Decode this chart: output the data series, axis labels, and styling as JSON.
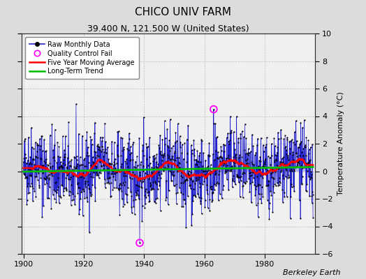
{
  "title": "CHICO UNIV FARM",
  "subtitle": "39.400 N, 121.500 W (United States)",
  "ylabel": "Temperature Anomaly (°C)",
  "credit": "Berkeley Earth",
  "year_start": 1900,
  "year_end": 1995,
  "ylim": [
    -6,
    10
  ],
  "yticks": [
    -6,
    -4,
    -2,
    0,
    2,
    4,
    6,
    8,
    10
  ],
  "xticks": [
    1900,
    1920,
    1940,
    1960,
    1980
  ],
  "bg_color": "#dcdcdc",
  "plot_bg_color": "#f0f0f0",
  "raw_line_color": "#2222cc",
  "raw_dot_color": "#000000",
  "raw_fill_color": "#8888ee",
  "qc_fail_color": "#ff00ff",
  "moving_avg_color": "#ff0000",
  "trend_color": "#00bb00",
  "qc_fail_points": [
    {
      "year": 1938.5,
      "value": -5.2
    },
    {
      "year": 1963.0,
      "value": 4.5
    }
  ],
  "seed": 42,
  "title_fontsize": 11,
  "subtitle_fontsize": 9,
  "tick_fontsize": 8,
  "ylabel_fontsize": 8,
  "legend_fontsize": 7,
  "credit_fontsize": 8
}
